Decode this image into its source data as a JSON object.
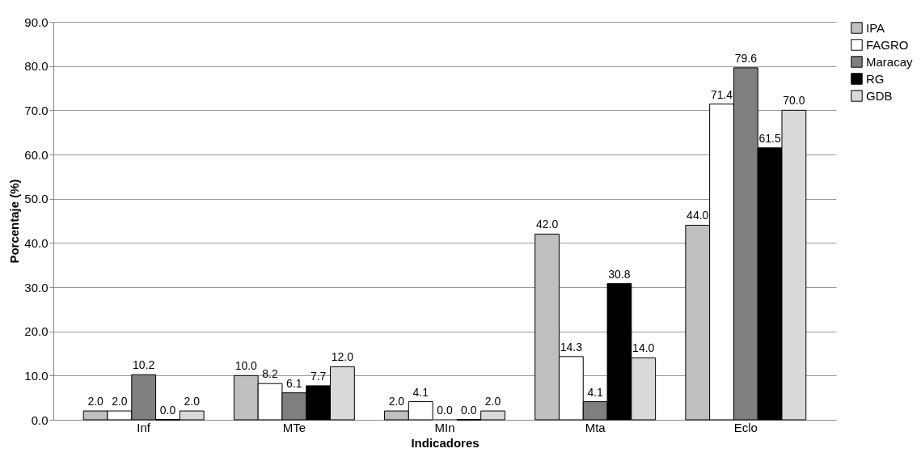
{
  "chart_data": {
    "type": "bar",
    "xlabel": "Indicadores",
    "ylabel": "Porcentaje (%)",
    "categories": [
      "Inf",
      "MTe",
      "MIn",
      "Mta",
      "Eclo"
    ],
    "series": [
      {
        "name": "IPA",
        "color": "#bfbfbf",
        "values": [
          2.0,
          10.0,
          2.0,
          42.0,
          44.0
        ],
        "value_labels": [
          "2.0",
          "10.0",
          "2.0",
          "42.0",
          "44.0"
        ]
      },
      {
        "name": "FAGRO",
        "color": "#ffffff",
        "values": [
          2.0,
          8.2,
          4.1,
          14.3,
          71.4
        ],
        "value_labels": [
          "2.0",
          "8.2",
          "4.1",
          "14.3",
          "71.4"
        ]
      },
      {
        "name": "Maracay",
        "color": "#7f7f7f",
        "values": [
          10.2,
          6.1,
          0.0,
          4.1,
          79.6
        ],
        "value_labels": [
          "10.2",
          "6.1",
          "0.0",
          "4.1",
          "79.6"
        ]
      },
      {
        "name": "RG",
        "color": "#000000",
        "values": [
          0.0,
          7.7,
          0.0,
          30.8,
          61.5
        ],
        "value_labels": [
          "0.0",
          "7.7",
          "0.0",
          "30.8",
          "61.5"
        ]
      },
      {
        "name": "GDB",
        "color": "#d9d9d9",
        "values": [
          2.0,
          12.0,
          2.0,
          14.0,
          70.0
        ],
        "value_labels": [
          "2.0",
          "12.0",
          "2.0",
          "14.0",
          "70.0"
        ]
      }
    ],
    "ylim": [
      0,
      90
    ],
    "yticks": [
      {
        "value": 0,
        "label": "0.0"
      },
      {
        "value": 10,
        "label": "10.0"
      },
      {
        "value": 20,
        "label": "20.0"
      },
      {
        "value": 30,
        "label": "30.0"
      },
      {
        "value": 40,
        "label": "40.0"
      },
      {
        "value": 50,
        "label": "50.0"
      },
      {
        "value": 60,
        "label": "60.0"
      },
      {
        "value": 70,
        "label": "70.0"
      },
      {
        "value": 80,
        "label": "80.0"
      },
      {
        "value": 90,
        "label": "90.0"
      }
    ],
    "grid": "y",
    "legend": "right"
  }
}
